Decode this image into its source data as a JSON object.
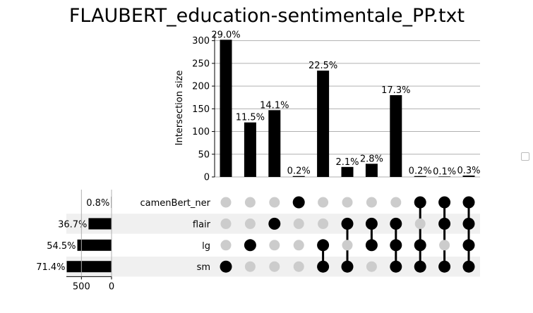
{
  "chart_data": {
    "type": "bar",
    "title": "FLAUBERT_education-sentimentale_PP.txt",
    "ylabel": "Intersection size",
    "ylim": [
      0,
      315
    ],
    "yticks": [
      0,
      50,
      100,
      150,
      200,
      250,
      300
    ],
    "grid": true,
    "sets": [
      "camenBert_ner",
      "flair",
      "lg",
      "sm"
    ],
    "set_totals": [
      8,
      382,
      568,
      744
    ],
    "set_total_labels": [
      "0.8%",
      "36.7%",
      "54.5%",
      "71.4%"
    ],
    "set_total_ticks": [
      500,
      0
    ],
    "set_total_lim": [
      0,
      750
    ],
    "intersections": [
      {
        "members": [
          "sm"
        ],
        "value": 302,
        "label": "29.0%"
      },
      {
        "members": [
          "lg"
        ],
        "value": 120,
        "label": "11.5%"
      },
      {
        "members": [
          "flair"
        ],
        "value": 147,
        "label": "14.1%"
      },
      {
        "members": [
          "camenBert_ner"
        ],
        "value": 2,
        "label": "0.2%"
      },
      {
        "members": [
          "lg",
          "sm"
        ],
        "value": 234,
        "label": "22.5%"
      },
      {
        "members": [
          "flair",
          "sm"
        ],
        "value": 22,
        "label": "2.1%"
      },
      {
        "members": [
          "flair",
          "lg"
        ],
        "value": 29,
        "label": "2.8%"
      },
      {
        "members": [
          "flair",
          "lg",
          "sm"
        ],
        "value": 180,
        "label": "17.3%"
      },
      {
        "members": [
          "camenBert_ner",
          "lg",
          "sm"
        ],
        "value": 2,
        "label": "0.2%"
      },
      {
        "members": [
          "camenBert_ner",
          "flair",
          "sm"
        ],
        "value": 1,
        "label": "0.1%"
      },
      {
        "members": [
          "camenBert_ner",
          "flair",
          "lg",
          "sm"
        ],
        "value": 3,
        "label": "0.3%"
      }
    ]
  }
}
